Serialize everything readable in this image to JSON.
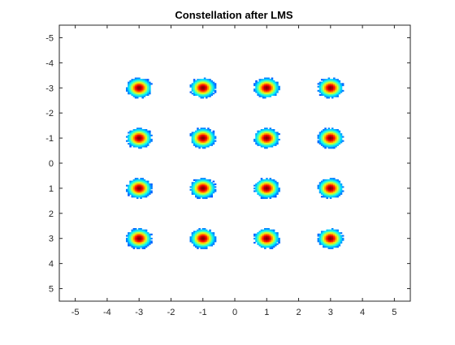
{
  "chart_data": {
    "type": "heatmap",
    "title": "Constellation after LMS",
    "xlabel": "",
    "ylabel": "",
    "xlim": [
      -5.5,
      5.5
    ],
    "ylim": [
      -5.5,
      5.5
    ],
    "y_direction": "reverse",
    "xticks": [
      -5,
      -4,
      -3,
      -2,
      -1,
      0,
      1,
      2,
      3,
      4,
      5
    ],
    "yticks": [
      -5,
      -4,
      -3,
      -2,
      -1,
      0,
      1,
      2,
      3,
      4,
      5
    ],
    "xtick_labels": [
      "-5",
      "-4",
      "-3",
      "-2",
      "-1",
      "0",
      "1",
      "2",
      "3",
      "4",
      "5"
    ],
    "ytick_labels": [
      "-5",
      "-4",
      "-3",
      "-2",
      "-1",
      "0",
      "1",
      "2",
      "3",
      "4",
      "5"
    ],
    "grid": false,
    "colormap": "jet",
    "clusters": [
      {
        "x": -3,
        "y": -3
      },
      {
        "x": -1,
        "y": -3
      },
      {
        "x": 1,
        "y": -3
      },
      {
        "x": 3,
        "y": -3
      },
      {
        "x": -3,
        "y": -1
      },
      {
        "x": -1,
        "y": -1
      },
      {
        "x": 1,
        "y": -1
      },
      {
        "x": 3,
        "y": -1
      },
      {
        "x": -3,
        "y": 1
      },
      {
        "x": -1,
        "y": 1
      },
      {
        "x": 1,
        "y": 1
      },
      {
        "x": 3,
        "y": 1
      },
      {
        "x": -3,
        "y": 3
      },
      {
        "x": -1,
        "y": 3
      },
      {
        "x": 1,
        "y": 3
      },
      {
        "x": 3,
        "y": 3
      }
    ],
    "cluster_radius": 0.42,
    "colors": {
      "axes_background": "#ffffff",
      "axis_line": "#262626",
      "background_cells": "#ffffff"
    }
  }
}
